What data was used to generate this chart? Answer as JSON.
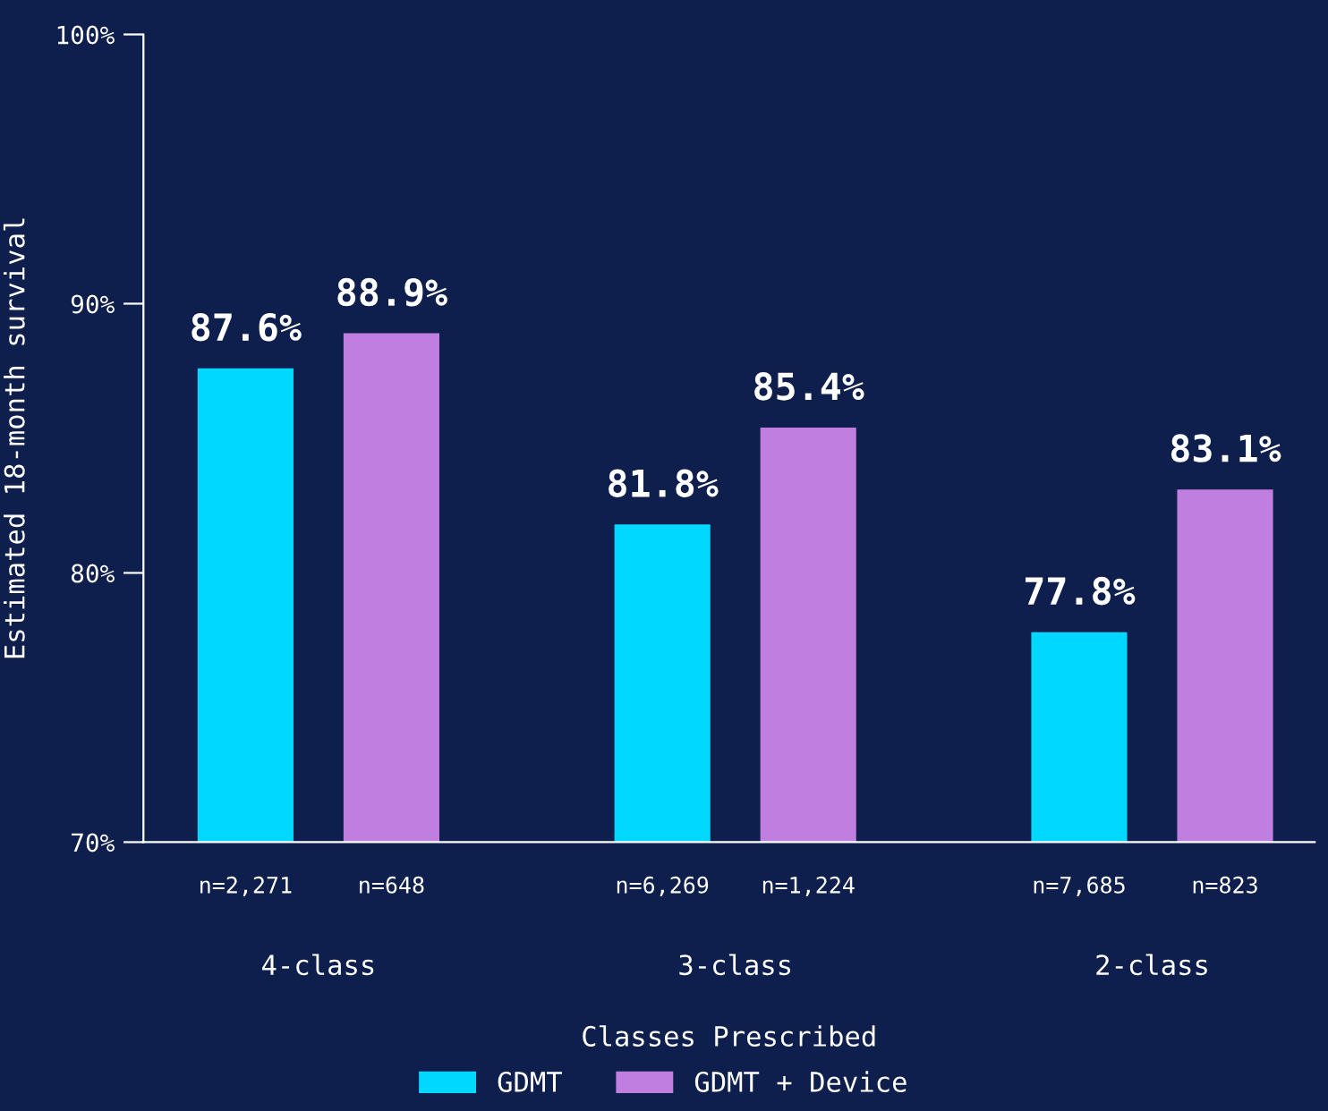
{
  "chart_data": {
    "type": "bar",
    "xlabel": "Classes Prescribed",
    "ylabel": "Estimated 18-month survival",
    "categories": [
      "4-class",
      "3-class",
      "2-class"
    ],
    "series": [
      {
        "name": "GDMT",
        "color": "#00d8ff",
        "values": [
          87.6,
          81.8,
          77.8
        ]
      },
      {
        "name": "GDMT + Device",
        "color": "#c07fe0",
        "values": [
          88.9,
          85.4,
          83.1
        ]
      }
    ],
    "ylim": [
      70,
      100
    ],
    "yticks": [
      {
        "value": 70,
        "label": "70%"
      },
      {
        "value": 80,
        "label": "80%"
      },
      {
        "value": 90,
        "label": "90%"
      },
      {
        "value": 100,
        "label": "100%"
      }
    ],
    "value_labels": [
      [
        "87.6%",
        "81.8%",
        "77.8%"
      ],
      [
        "88.9%",
        "85.4%",
        "83.1%"
      ]
    ],
    "annotations": [
      "n=2,271",
      "n=648",
      "n=6,269",
      "n=1,224",
      "n=7,685",
      "n=823"
    ],
    "grid": false,
    "legend": "bottom"
  }
}
